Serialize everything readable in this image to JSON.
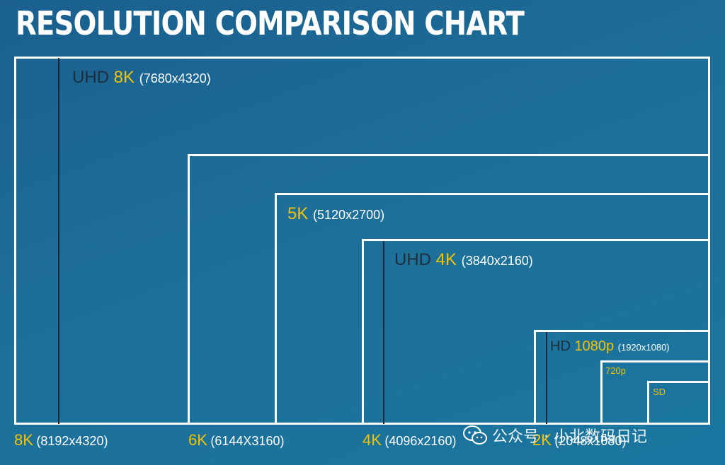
{
  "title": "RESOLUTION COMPARISON CHART",
  "boxes": {
    "uhd8k": {
      "prefix": "UHD",
      "name": "8K",
      "dims": "(7680x4320)"
    },
    "k5": {
      "name": "5K",
      "dims": "(5120x2700)"
    },
    "uhd4k": {
      "prefix": "UHD",
      "name": "4K",
      "dims": "(3840x2160)"
    },
    "hd1080": {
      "prefix": "HD",
      "name": "1080p",
      "dims": "(1920x1080)"
    },
    "p720": {
      "name": "720p"
    },
    "sd": {
      "name": "SD"
    }
  },
  "bottom_labels": [
    {
      "name": "8K",
      "dims": "(8192x4320)"
    },
    {
      "name": "6K",
      "dims": "(6144X3160)"
    },
    {
      "name": "4K",
      "dims": "(4096x2160)"
    },
    {
      "name": "2K",
      "dims": "(2048x1080)"
    }
  ],
  "watermark": {
    "text": "公众号 · 小北数码日记",
    "icon": "wechat-icon"
  },
  "colors": {
    "label_yellow": "#f2c300",
    "uhd_dark": "#1f2d3a",
    "line": "#ffffff"
  }
}
